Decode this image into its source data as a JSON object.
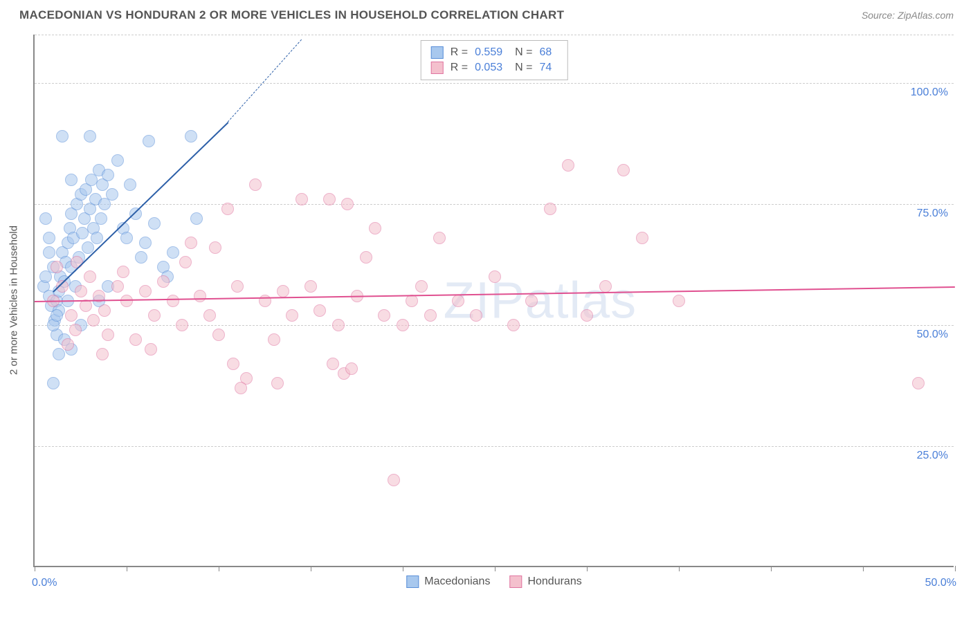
{
  "title": "MACEDONIAN VS HONDURAN 2 OR MORE VEHICLES IN HOUSEHOLD CORRELATION CHART",
  "source_label": "Source: ZipAtlas.com",
  "watermark": "ZIPatlas",
  "chart": {
    "type": "scatter",
    "yaxis_label": "2 or more Vehicles in Household",
    "xlim": [
      0,
      50
    ],
    "ylim": [
      0,
      110
    ],
    "yticks": [
      25,
      50,
      75,
      100
    ],
    "ytick_labels": [
      "25.0%",
      "50.0%",
      "75.0%",
      "100.0%"
    ],
    "xticks": [
      0,
      5,
      10,
      15,
      20,
      25,
      30,
      35,
      40,
      45,
      50
    ],
    "xtick_label_min": "0.0%",
    "xtick_label_max": "50.0%",
    "background_color": "#ffffff",
    "grid_color": "#cccccc",
    "axis_color": "#888888",
    "tick_label_color": "#4a7fd8",
    "point_radius": 9,
    "point_opacity": 0.55,
    "series": [
      {
        "name": "Macedonians",
        "fill_color": "#a8c8ee",
        "stroke_color": "#5a8fd8",
        "R": "0.559",
        "N": "68",
        "trend": {
          "x1": 1,
          "y1": 57,
          "x2": 10.5,
          "y2": 92,
          "dash_to_x": 14.5,
          "dash_to_y": 109,
          "color": "#2c5fa8",
          "width": 2
        },
        "points": [
          [
            0.5,
            58
          ],
          [
            0.6,
            60
          ],
          [
            0.8,
            56
          ],
          [
            0.9,
            54
          ],
          [
            1.0,
            62
          ],
          [
            1.1,
            51
          ],
          [
            1.2,
            55
          ],
          [
            1.2,
            48
          ],
          [
            1.3,
            57
          ],
          [
            1.3,
            53
          ],
          [
            1.4,
            60
          ],
          [
            1.5,
            65
          ],
          [
            1.6,
            59
          ],
          [
            1.7,
            63
          ],
          [
            1.8,
            67
          ],
          [
            1.8,
            55
          ],
          [
            1.9,
            70
          ],
          [
            2.0,
            62
          ],
          [
            2.0,
            73
          ],
          [
            2.1,
            68
          ],
          [
            2.2,
            58
          ],
          [
            2.3,
            75
          ],
          [
            2.4,
            64
          ],
          [
            2.5,
            77
          ],
          [
            2.6,
            69
          ],
          [
            2.7,
            72
          ],
          [
            2.8,
            78
          ],
          [
            2.9,
            66
          ],
          [
            3.0,
            74
          ],
          [
            3.1,
            80
          ],
          [
            3.2,
            70
          ],
          [
            3.3,
            76
          ],
          [
            3.4,
            68
          ],
          [
            3.5,
            82
          ],
          [
            3.6,
            72
          ],
          [
            3.7,
            79
          ],
          [
            3.8,
            75
          ],
          [
            4.0,
            81
          ],
          [
            4.2,
            77
          ],
          [
            4.5,
            84
          ],
          [
            4.8,
            70
          ],
          [
            5.0,
            68
          ],
          [
            5.2,
            79
          ],
          [
            5.5,
            73
          ],
          [
            5.8,
            64
          ],
          [
            6.0,
            67
          ],
          [
            6.2,
            88
          ],
          [
            6.5,
            71
          ],
          [
            7.0,
            62
          ],
          [
            7.2,
            60
          ],
          [
            7.5,
            65
          ],
          [
            1.5,
            89
          ],
          [
            2.0,
            80
          ],
          [
            3.0,
            89
          ],
          [
            0.8,
            65
          ],
          [
            1.0,
            38
          ],
          [
            1.3,
            44
          ],
          [
            1.6,
            47
          ],
          [
            8.5,
            89
          ],
          [
            8.8,
            72
          ],
          [
            1.0,
            50
          ],
          [
            1.2,
            52
          ],
          [
            0.6,
            72
          ],
          [
            0.8,
            68
          ],
          [
            2.5,
            50
          ],
          [
            3.5,
            55
          ],
          [
            4.0,
            58
          ],
          [
            2.0,
            45
          ]
        ]
      },
      {
        "name": "Hondurans",
        "fill_color": "#f4c0cd",
        "stroke_color": "#e074a0",
        "R": "0.053",
        "N": "74",
        "trend": {
          "x1": 0,
          "y1": 55,
          "x2": 50,
          "y2": 58,
          "color": "#e05090",
          "width": 2
        },
        "points": [
          [
            1.0,
            55
          ],
          [
            1.5,
            58
          ],
          [
            2.0,
            52
          ],
          [
            2.2,
            49
          ],
          [
            2.5,
            57
          ],
          [
            2.8,
            54
          ],
          [
            3.0,
            60
          ],
          [
            3.2,
            51
          ],
          [
            3.5,
            56
          ],
          [
            3.8,
            53
          ],
          [
            4.0,
            48
          ],
          [
            4.5,
            58
          ],
          [
            5.0,
            55
          ],
          [
            5.5,
            47
          ],
          [
            6.0,
            57
          ],
          [
            6.5,
            52
          ],
          [
            7.0,
            59
          ],
          [
            7.5,
            55
          ],
          [
            8.0,
            50
          ],
          [
            8.5,
            67
          ],
          [
            9.0,
            56
          ],
          [
            9.5,
            52
          ],
          [
            10.0,
            48
          ],
          [
            10.5,
            74
          ],
          [
            11.0,
            58
          ],
          [
            11.5,
            39
          ],
          [
            12.0,
            79
          ],
          [
            12.5,
            55
          ],
          [
            13.0,
            47
          ],
          [
            13.5,
            57
          ],
          [
            14.0,
            52
          ],
          [
            14.5,
            76
          ],
          [
            15.0,
            58
          ],
          [
            15.5,
            53
          ],
          [
            16.0,
            76
          ],
          [
            16.5,
            50
          ],
          [
            17.0,
            75
          ],
          [
            17.5,
            56
          ],
          [
            18.0,
            64
          ],
          [
            18.5,
            70
          ],
          [
            19.0,
            52
          ],
          [
            19.5,
            18
          ],
          [
            20.0,
            50
          ],
          [
            20.5,
            55
          ],
          [
            21.0,
            58
          ],
          [
            21.5,
            52
          ],
          [
            22.0,
            68
          ],
          [
            23.0,
            55
          ],
          [
            24.0,
            52
          ],
          [
            25.0,
            60
          ],
          [
            26.0,
            50
          ],
          [
            27.0,
            55
          ],
          [
            28.0,
            74
          ],
          [
            29.0,
            83
          ],
          [
            30.0,
            52
          ],
          [
            31.0,
            58
          ],
          [
            32.0,
            82
          ],
          [
            33.0,
            68
          ],
          [
            35.0,
            55
          ],
          [
            48.0,
            38
          ],
          [
            1.2,
            62
          ],
          [
            1.8,
            46
          ],
          [
            2.3,
            63
          ],
          [
            3.7,
            44
          ],
          [
            4.8,
            61
          ],
          [
            6.3,
            45
          ],
          [
            8.2,
            63
          ],
          [
            10.8,
            42
          ],
          [
            13.2,
            38
          ],
          [
            16.2,
            42
          ],
          [
            16.8,
            40
          ],
          [
            17.2,
            41
          ],
          [
            11.2,
            37
          ],
          [
            9.8,
            66
          ]
        ]
      }
    ]
  },
  "legend_bottom": [
    {
      "label": "Macedonians",
      "fill": "#a8c8ee",
      "stroke": "#5a8fd8"
    },
    {
      "label": "Hondurans",
      "fill": "#f4c0cd",
      "stroke": "#e074a0"
    }
  ]
}
